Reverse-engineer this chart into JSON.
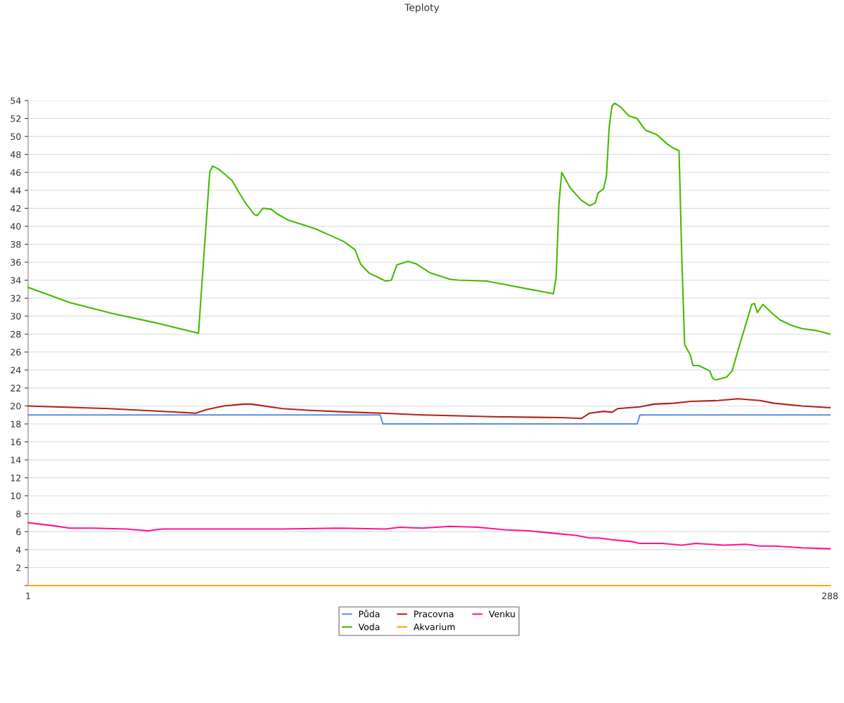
{
  "chart_data": {
    "type": "line",
    "title": "Teploty",
    "xlim": [
      1,
      288
    ],
    "ylim": [
      0,
      54
    ],
    "yticks": [
      {
        "value": 0,
        "label": null
      },
      2,
      4,
      6,
      8,
      10,
      12,
      14,
      16,
      18,
      20,
      22,
      24,
      26,
      28,
      30,
      32,
      34,
      36,
      38,
      40,
      42,
      44,
      46,
      48,
      50,
      52,
      54
    ],
    "xticks": [
      1,
      288
    ],
    "grid": "y",
    "legend": "bottom",
    "marker": "none",
    "line_style": "solid",
    "series": [
      {
        "name": "Půda",
        "color": "#5b8fe0",
        "x": [
          1,
          127,
          128,
          219,
          220,
          288
        ],
        "values": [
          19,
          19,
          18,
          18,
          19,
          19
        ]
      },
      {
        "name": "Voda",
        "color": "#44bb00",
        "x": [
          1,
          16,
          31,
          46,
          62,
          63,
          66,
          67,
          69,
          71,
          74,
          76,
          79,
          82,
          83,
          85,
          88,
          90,
          94,
          98,
          100,
          104,
          109,
          114,
          118,
          120,
          123,
          127,
          129,
          131,
          133,
          137,
          140,
          145,
          152,
          155,
          165,
          172,
          182,
          189,
          190,
          191,
          192,
          195,
          199,
          202,
          204,
          205,
          207,
          208,
          209,
          210,
          211,
          213,
          216,
          219,
          221,
          222,
          226,
          230,
          232,
          234,
          235,
          236,
          238,
          239,
          241,
          245,
          246,
          247,
          251,
          253,
          255,
          258,
          260,
          261,
          262,
          264,
          267,
          270,
          274,
          278,
          283,
          288
        ],
        "values": [
          33.2,
          31.5,
          30.3,
          29.3,
          28.1,
          32.7,
          46.0,
          46.7,
          46.4,
          45.9,
          45.1,
          44.0,
          42.5,
          41.3,
          41.2,
          42.0,
          41.9,
          41.4,
          40.7,
          40.3,
          40.1,
          39.7,
          39.0,
          38.3,
          37.4,
          35.8,
          34.8,
          34.2,
          33.9,
          34.0,
          35.7,
          36.1,
          35.8,
          34.8,
          34.1,
          34.0,
          33.9,
          33.5,
          32.9,
          32.5,
          34.3,
          42.5,
          46.0,
          44.3,
          42.9,
          42.3,
          42.6,
          43.7,
          44.2,
          45.6,
          51.1,
          53.4,
          53.7,
          53.3,
          52.3,
          52.0,
          51.1,
          50.7,
          50.2,
          49.1,
          48.7,
          48.4,
          36.2,
          26.8,
          25.7,
          24.5,
          24.5,
          23.9,
          23.1,
          22.9,
          23.2,
          23.9,
          26.1,
          29.2,
          31.3,
          31.4,
          30.4,
          31.3,
          30.4,
          29.6,
          29.0,
          28.6,
          28.4,
          28.0
        ]
      },
      {
        "name": "Pracovna",
        "color": "#b22222",
        "x": [
          1,
          30,
          61,
          65,
          71,
          78,
          81,
          92,
          102,
          117,
          128,
          142,
          155,
          167,
          192,
          199,
          202,
          207,
          210,
          212,
          220,
          225,
          232,
          238,
          248,
          255,
          263,
          268,
          278,
          288
        ],
        "values": [
          20.0,
          19.7,
          19.2,
          19.6,
          20.0,
          20.2,
          20.2,
          19.7,
          19.5,
          19.3,
          19.2,
          19.0,
          18.9,
          18.8,
          18.7,
          18.6,
          19.2,
          19.4,
          19.3,
          19.7,
          19.9,
          20.2,
          20.3,
          20.5,
          20.6,
          20.8,
          20.6,
          20.3,
          20.0,
          19.8
        ]
      },
      {
        "name": "Akvarium",
        "color": "#ffa500",
        "x": [
          1,
          288
        ],
        "values": [
          0,
          0
        ]
      },
      {
        "name": "Venku",
        "color": "#ff1493",
        "x": [
          1,
          9,
          16,
          24,
          36,
          44,
          49,
          66,
          92,
          112,
          129,
          134,
          142,
          152,
          162,
          172,
          180,
          190,
          197,
          202,
          205,
          210,
          217,
          220,
          228,
          235,
          240,
          250,
          258,
          263,
          268,
          278,
          288
        ],
        "values": [
          7.0,
          6.7,
          6.4,
          6.4,
          6.3,
          6.1,
          6.3,
          6.3,
          6.3,
          6.4,
          6.3,
          6.5,
          6.4,
          6.6,
          6.5,
          6.2,
          6.1,
          5.8,
          5.6,
          5.3,
          5.3,
          5.1,
          4.9,
          4.7,
          4.7,
          4.5,
          4.7,
          4.5,
          4.6,
          4.4,
          4.4,
          4.2,
          4.1
        ]
      }
    ]
  }
}
